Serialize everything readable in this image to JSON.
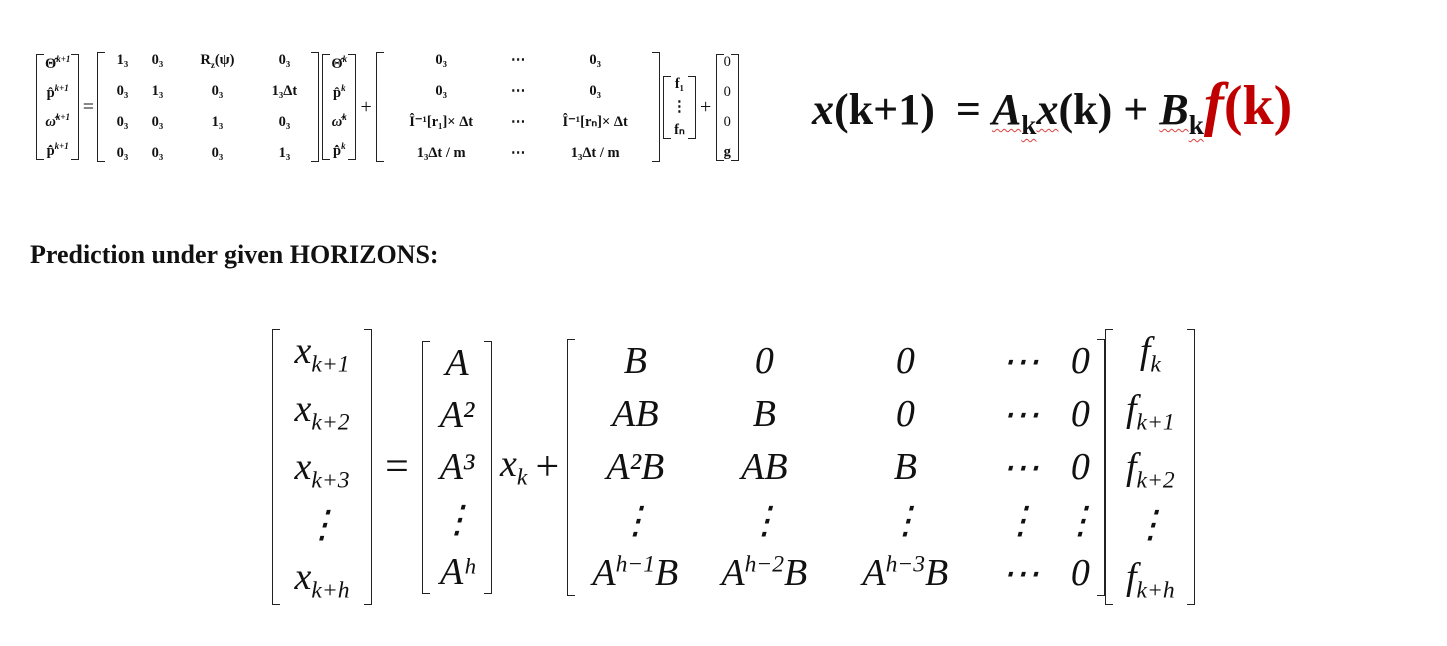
{
  "heading": "Prediction under given HORIZONS:",
  "compact": {
    "lhs": "x",
    "lhs_arg": "(k+1)",
    "eq": "=",
    "A": "A",
    "A_sub": "k",
    "x": "x",
    "x_arg": "(k)",
    "plus": "+",
    "B": "B",
    "B_sub": "k",
    "f": "f",
    "f_arg": "(k)"
  },
  "dyn": {
    "state_next": [
      "Θ̂",
      "p̂",
      "ω̂",
      "p̂̇"
    ],
    "state_next_sup": "k+1",
    "A_rows": [
      [
        "1₃",
        "0₃",
        "R_z(ψ)",
        "0₃"
      ],
      [
        "0₃",
        "1₃",
        "0₃",
        "1₃Δt"
      ],
      [
        "0₃",
        "0₃",
        "1₃",
        "0₃"
      ],
      [
        "0₃",
        "0₃",
        "0₃",
        "1₃"
      ]
    ],
    "state_cur_sup": "k",
    "B_rows": [
      [
        "0₃",
        "⋯",
        "0₃"
      ],
      [
        "0₃",
        "⋯",
        "0₃"
      ],
      [
        "Î⁻¹[r₁]× Δt",
        "⋯",
        "Î⁻¹[rₙ]× Δt"
      ],
      [
        "1₃Δt / m",
        "⋯",
        "1₃Δt / m"
      ]
    ],
    "f_vec": [
      "f₁",
      "⋮",
      "fₙ"
    ],
    "g_vec": [
      "0",
      "0",
      "0",
      "g"
    ],
    "eq": "=",
    "plus": "+"
  },
  "horizon": {
    "lhs": [
      "x_{k+1}",
      "x_{k+2}",
      "x_{k+3}",
      "⋮",
      "x_{k+h}"
    ],
    "A_powers": [
      "A",
      "A²",
      "A³",
      "⋮",
      "Aʰ"
    ],
    "xk": "x_k",
    "B_matrix": [
      [
        "B",
        "0",
        "0",
        "⋯",
        "0"
      ],
      [
        "AB",
        "B",
        "0",
        "⋯",
        "0"
      ],
      [
        "A²B",
        "AB",
        "B",
        "⋯",
        "0"
      ],
      [
        "⋮",
        "⋮",
        "⋮",
        "⋮",
        "⋮"
      ],
      [
        "A^{h−1}B",
        "A^{h−2}B",
        "A^{h−3}B",
        "⋯",
        "0"
      ]
    ],
    "f_vec": [
      "f_k",
      "f_{k+1}",
      "f_{k+2}",
      "⋮",
      "f_{k+h}"
    ],
    "eq": "=",
    "plus": "+"
  }
}
